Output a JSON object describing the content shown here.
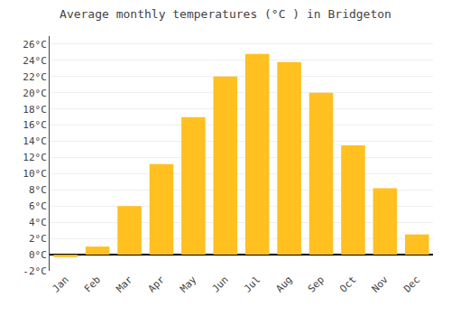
{
  "chart_data": {
    "type": "bar",
    "title": "Average monthly temperatures (°C ) in Bridgeton",
    "categories": [
      "Jan",
      "Feb",
      "Mar",
      "Apr",
      "May",
      "Jun",
      "Jul",
      "Aug",
      "Sep",
      "Oct",
      "Nov",
      "Dec"
    ],
    "values": [
      -0.3,
      1.0,
      6.0,
      11.2,
      17.0,
      22.0,
      24.8,
      23.8,
      20.0,
      13.5,
      8.2,
      2.5
    ],
    "color": "#FFC020",
    "ylim": [
      -2,
      27
    ],
    "yticks": [
      {
        "value": -2,
        "label": "-2°C"
      },
      {
        "value": 0,
        "label": "0°C"
      },
      {
        "value": 2,
        "label": "2°C"
      },
      {
        "value": 4,
        "label": "4°C"
      },
      {
        "value": 6,
        "label": "6°C"
      },
      {
        "value": 8,
        "label": "8°C"
      },
      {
        "value": 10,
        "label": "10°C"
      },
      {
        "value": 12,
        "label": "12°C"
      },
      {
        "value": 14,
        "label": "14°C"
      },
      {
        "value": 16,
        "label": "16°C"
      },
      {
        "value": 18,
        "label": "18°C"
      },
      {
        "value": 20,
        "label": "20°C"
      },
      {
        "value": 22,
        "label": "22°C"
      },
      {
        "value": 24,
        "label": "24°C"
      },
      {
        "value": 26,
        "label": "26°C"
      }
    ],
    "grid": true
  }
}
